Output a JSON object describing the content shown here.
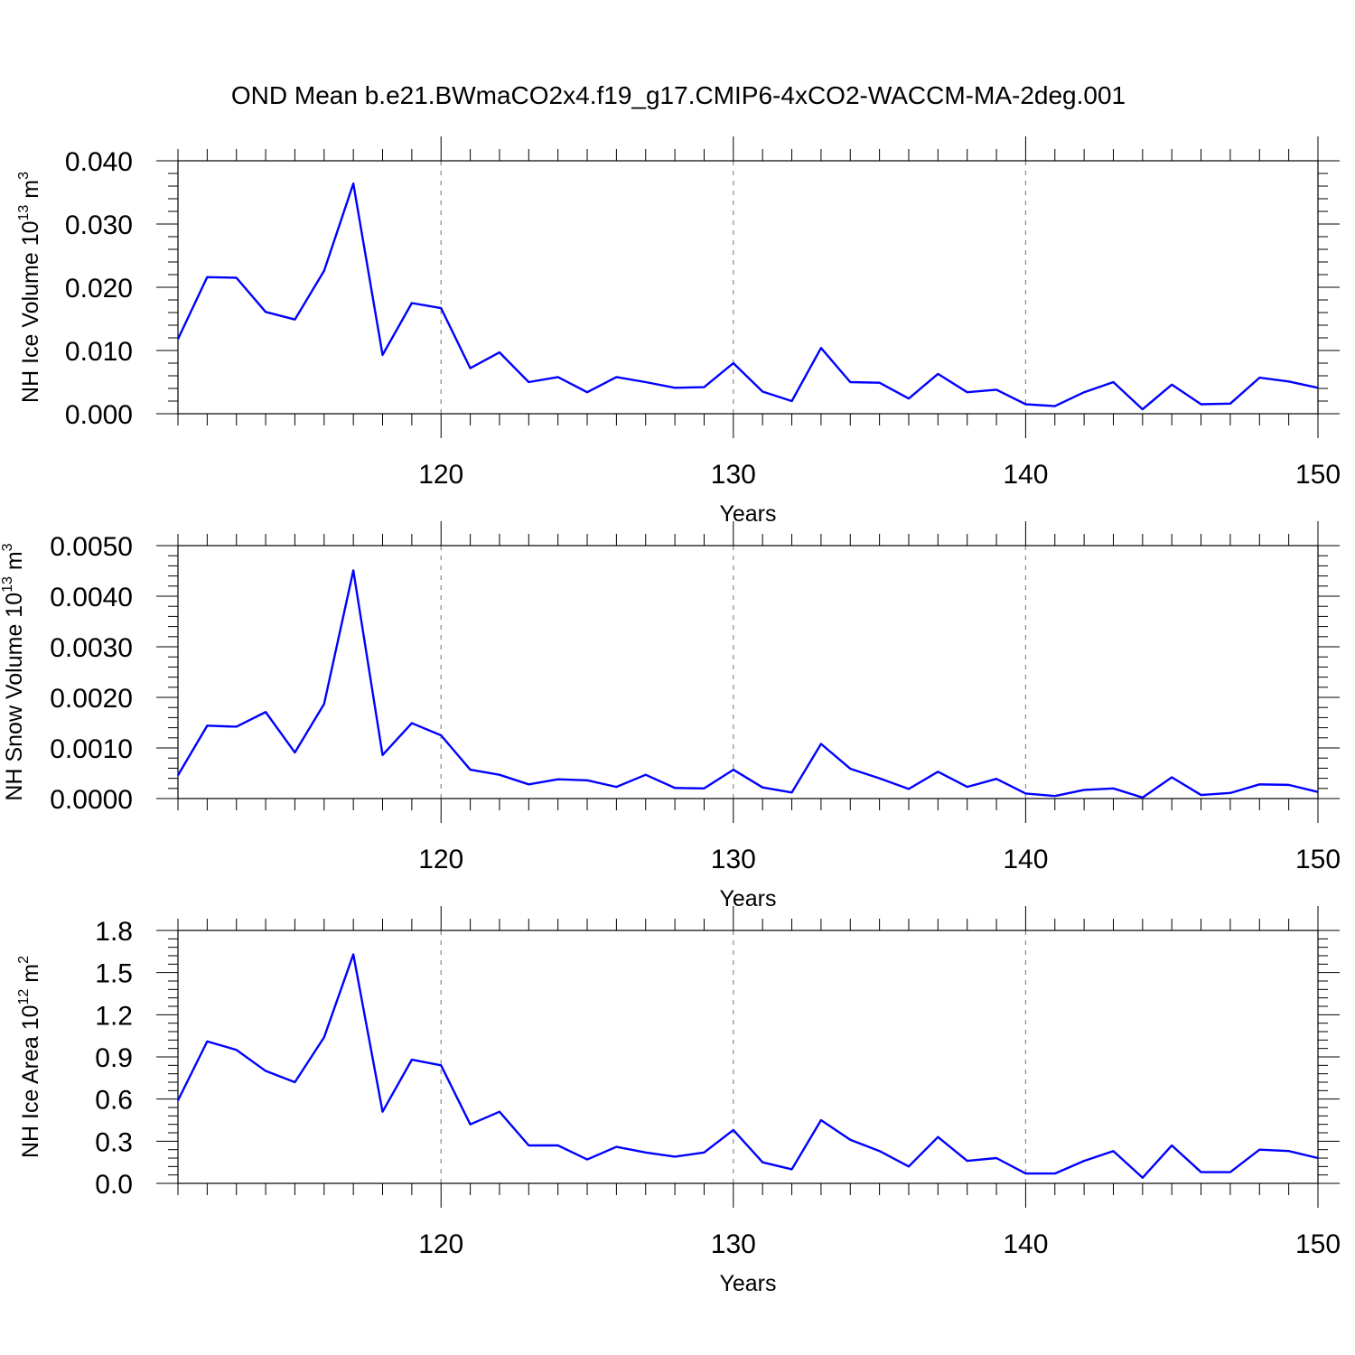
{
  "figure_title": "OND Mean b.e21.BWmaCO2x4.f19_g17.CMIP6-4xCO2-WACCM-MA-2deg.001",
  "colors": {
    "line": "#0000ff",
    "axes": "#000000",
    "grid": "#888888"
  },
  "chart_data": [
    {
      "type": "line",
      "title": "",
      "xlabel": "Years",
      "ylabel": "NH Ice Volume 10",
      "ylabel_exp": "13",
      "ylabel_unit": " m",
      "ylabel_unit_exp": "3",
      "xlim": [
        111,
        150
      ],
      "ylim": [
        0,
        0.04
      ],
      "xticks": [
        120,
        130,
        140,
        150
      ],
      "xtick_labels": [
        "120",
        "130",
        "140",
        "150"
      ],
      "yticks": [
        0,
        0.01,
        0.02,
        0.03,
        0.04
      ],
      "ytick_labels": [
        "0.000",
        "0.010",
        "0.020",
        "0.030",
        "0.040"
      ],
      "grid": "vertical dashed at major x ticks",
      "x": [
        111,
        112,
        113,
        114,
        115,
        116,
        117,
        118,
        119,
        120,
        121,
        122,
        123,
        124,
        125,
        126,
        127,
        128,
        129,
        130,
        131,
        132,
        133,
        134,
        135,
        136,
        137,
        138,
        139,
        140,
        141,
        142,
        143,
        144,
        145,
        146,
        147,
        148,
        149,
        150
      ],
      "series": [
        {
          "values": [
            0.0118,
            0.0216,
            0.0215,
            0.0161,
            0.0149,
            0.0226,
            0.0364,
            0.0093,
            0.0175,
            0.0167,
            0.0072,
            0.0097,
            0.005,
            0.0058,
            0.0034,
            0.0058,
            0.005,
            0.0041,
            0.0042,
            0.008,
            0.0035,
            0.002,
            0.0104,
            0.005,
            0.0049,
            0.0024,
            0.0063,
            0.0034,
            0.0038,
            0.0015,
            0.0012,
            0.0034,
            0.005,
            0.0007,
            0.0046,
            0.0015,
            0.0016,
            0.0057,
            0.0051,
            0.0041
          ]
        }
      ]
    },
    {
      "type": "line",
      "title": "",
      "xlabel": "Years",
      "ylabel": "NH Snow Volume 10",
      "ylabel_exp": "13",
      "ylabel_unit": " m",
      "ylabel_unit_exp": "3",
      "xlim": [
        111,
        150
      ],
      "ylim": [
        0,
        0.005
      ],
      "xticks": [
        120,
        130,
        140,
        150
      ],
      "xtick_labels": [
        "120",
        "130",
        "140",
        "150"
      ],
      "yticks": [
        0,
        0.001,
        0.002,
        0.003,
        0.004,
        0.005
      ],
      "ytick_labels": [
        "0.0000",
        "0.0010",
        "0.0020",
        "0.0030",
        "0.0040",
        "0.0050"
      ],
      "grid": "vertical dashed at major x ticks",
      "x": [
        111,
        112,
        113,
        114,
        115,
        116,
        117,
        118,
        119,
        120,
        121,
        122,
        123,
        124,
        125,
        126,
        127,
        128,
        129,
        130,
        131,
        132,
        133,
        134,
        135,
        136,
        137,
        138,
        139,
        140,
        141,
        142,
        143,
        144,
        145,
        146,
        147,
        148,
        149,
        150
      ],
      "series": [
        {
          "values": [
            0.00046,
            0.00144,
            0.00142,
            0.00171,
            0.00091,
            0.00187,
            0.00451,
            0.00086,
            0.00149,
            0.00125,
            0.00057,
            0.00047,
            0.00028,
            0.00038,
            0.00036,
            0.00023,
            0.00047,
            0.00021,
            0.0002,
            0.00057,
            0.00022,
            0.00012,
            0.00108,
            0.00059,
            0.0004,
            0.00019,
            0.00053,
            0.00023,
            0.00039,
            0.0001,
            5e-05,
            0.00017,
            0.0002,
            2e-05,
            0.00042,
            7e-05,
            0.00011,
            0.00028,
            0.00027,
            0.00013
          ]
        }
      ]
    },
    {
      "type": "line",
      "title": "",
      "xlabel": "Years",
      "ylabel": "NH Ice Area 10",
      "ylabel_exp": "12",
      "ylabel_unit": " m",
      "ylabel_unit_exp": "2",
      "xlim": [
        111,
        150
      ],
      "ylim": [
        0,
        1.8
      ],
      "xticks": [
        120,
        130,
        140,
        150
      ],
      "xtick_labels": [
        "120",
        "130",
        "140",
        "150"
      ],
      "yticks": [
        0,
        0.3,
        0.6,
        0.9,
        1.2,
        1.5,
        1.8
      ],
      "ytick_labels": [
        "0.0",
        "0.3",
        "0.6",
        "0.9",
        "1.2",
        "1.5",
        "1.8"
      ],
      "grid": "vertical dashed at major x ticks",
      "x": [
        111,
        112,
        113,
        114,
        115,
        116,
        117,
        118,
        119,
        120,
        121,
        122,
        123,
        124,
        125,
        126,
        127,
        128,
        129,
        130,
        131,
        132,
        133,
        134,
        135,
        136,
        137,
        138,
        139,
        140,
        141,
        142,
        143,
        144,
        145,
        146,
        147,
        148,
        149,
        150
      ],
      "series": [
        {
          "values": [
            0.59,
            1.01,
            0.95,
            0.8,
            0.72,
            1.04,
            1.63,
            0.51,
            0.88,
            0.84,
            0.42,
            0.51,
            0.27,
            0.27,
            0.17,
            0.26,
            0.22,
            0.19,
            0.22,
            0.38,
            0.15,
            0.1,
            0.45,
            0.31,
            0.23,
            0.12,
            0.33,
            0.16,
            0.18,
            0.07,
            0.07,
            0.16,
            0.23,
            0.04,
            0.27,
            0.08,
            0.08,
            0.24,
            0.23,
            0.18
          ]
        }
      ]
    }
  ]
}
